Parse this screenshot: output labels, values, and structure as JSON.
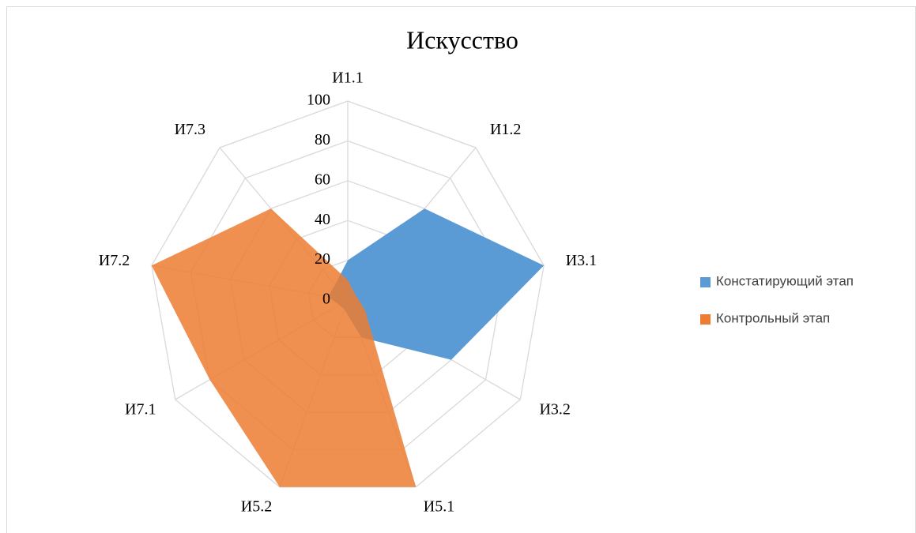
{
  "chart_data": {
    "type": "radar",
    "title": "Искусство",
    "categories": [
      "И1.1",
      "И1.2",
      "И3.1",
      "И3.2",
      "И5.1",
      "И5.2",
      "И7.1",
      "И7.2",
      "И7.3"
    ],
    "series": [
      {
        "name": "Констатирующий этап",
        "color": "#5b9bd5",
        "values": [
          20,
          60,
          100,
          60,
          20,
          5,
          5,
          10,
          10
        ]
      },
      {
        "name": "Контрольный этап",
        "color": "#ed7d31",
        "values": [
          10,
          5,
          5,
          10,
          100,
          100,
          80,
          100,
          60
        ]
      }
    ],
    "ylim": [
      0,
      100
    ],
    "yticks": [
      0,
      20,
      40,
      60,
      80,
      100
    ],
    "grid": true,
    "legend": "right"
  }
}
